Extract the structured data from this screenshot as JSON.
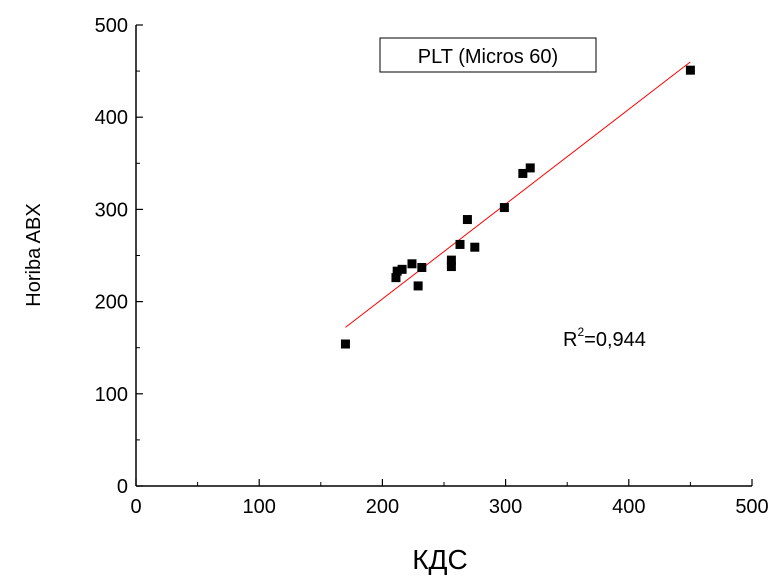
{
  "chart_data": {
    "type": "scatter",
    "xlabel": "КДС",
    "ylabel": "Horiba ABX",
    "xlim": [
      0,
      500
    ],
    "ylim": [
      0,
      500
    ],
    "x_ticks": [
      0,
      100,
      200,
      300,
      400,
      500
    ],
    "y_ticks": [
      0,
      100,
      200,
      300,
      400,
      500
    ],
    "x_ticks_labels": [
      "0",
      "100",
      "200",
      "300",
      "400",
      "500"
    ],
    "y_ticks_labels": [
      "0",
      "100",
      "200",
      "300",
      "400",
      "500"
    ],
    "grid": false,
    "legend_label": "PLT (Micros 60)",
    "legend_position": "top-center",
    "annotation": {
      "r2_prefix": "R",
      "r2_sup": "2",
      "r2_value": "=0,944"
    },
    "series": [
      {
        "marker": "square",
        "color": "#000000",
        "points": [
          [
            170,
            154
          ],
          [
            211,
            226
          ],
          [
            212,
            233
          ],
          [
            216,
            235
          ],
          [
            224,
            241
          ],
          [
            229,
            217
          ],
          [
            232,
            237
          ],
          [
            256,
            238
          ],
          [
            256,
            245
          ],
          [
            263,
            262
          ],
          [
            269,
            289
          ],
          [
            275,
            259
          ],
          [
            299,
            302
          ],
          [
            314,
            339
          ],
          [
            320,
            345
          ],
          [
            450,
            451
          ]
        ]
      }
    ],
    "fit_line": {
      "color": "#ff0000",
      "x": [
        170,
        450
      ],
      "y": [
        172,
        460
      ]
    }
  }
}
